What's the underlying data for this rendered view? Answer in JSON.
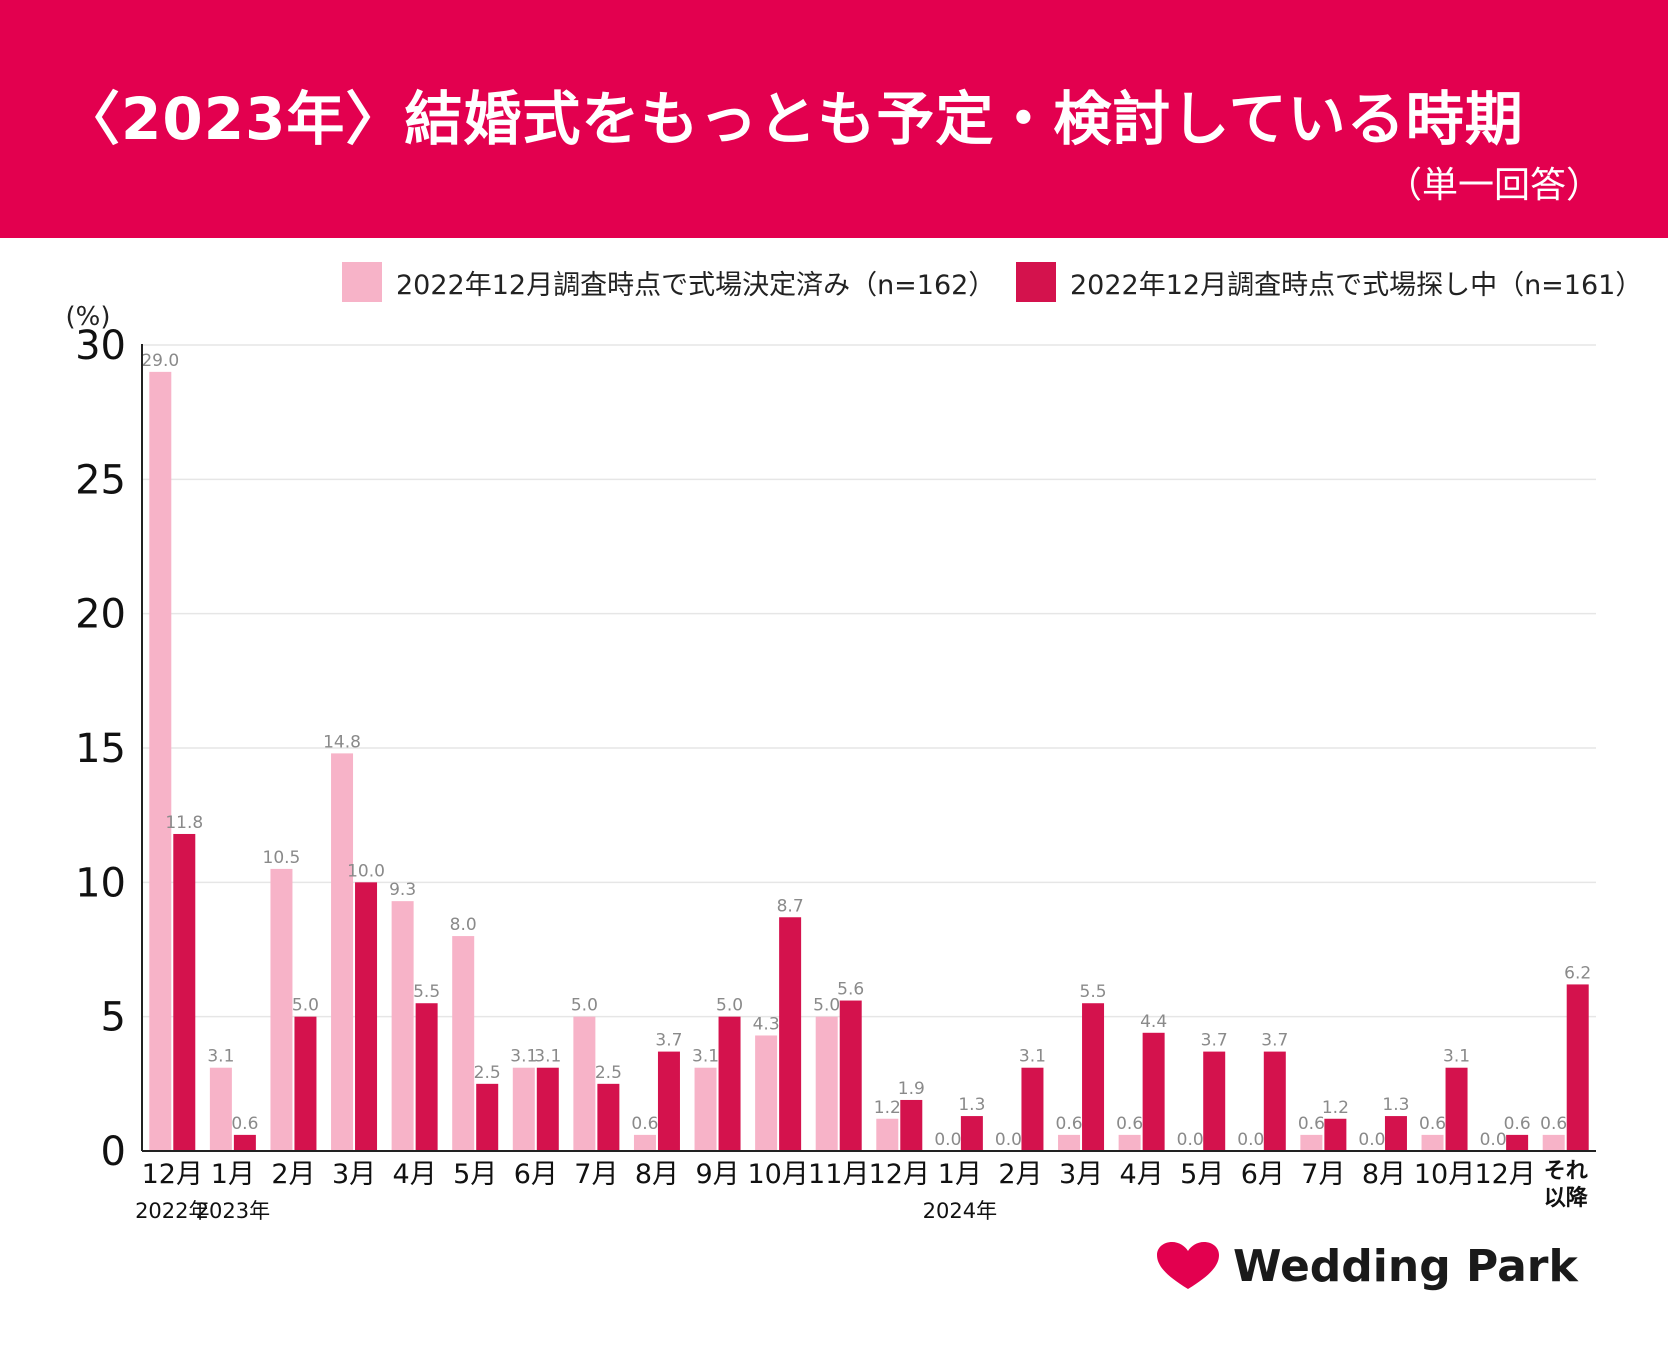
{
  "header": {
    "title": "〈2023年〉結婚式をもっとも予定・検討している時期",
    "note": "（単一回答）"
  },
  "colors": {
    "header_bg": "#e3004f",
    "series_decided": "#f7b3c8",
    "series_searching": "#d4124d"
  },
  "logo": {
    "text": "Wedding Park",
    "icon": "heart-icon"
  },
  "chart_data": {
    "type": "bar",
    "ylabel": "(%)",
    "ylim": [
      0,
      30
    ],
    "yticks": [
      0,
      5,
      10,
      15,
      20,
      25,
      30
    ],
    "grid": true,
    "legend_position": "top-right",
    "categories": [
      "12月",
      "1月",
      "2月",
      "3月",
      "4月",
      "5月",
      "6月",
      "7月",
      "8月",
      "9月",
      "10月",
      "11月",
      "12月",
      "1月",
      "2月",
      "3月",
      "4月",
      "5月",
      "6月",
      "7月",
      "8月",
      "10月",
      "12月",
      "それ以降"
    ],
    "year_labels": [
      {
        "text": "2022年",
        "category_index": 0
      },
      {
        "text": "2023年",
        "category_index": 1
      },
      {
        "text": "2024年",
        "category_index": 13
      }
    ],
    "series": [
      {
        "name": "2022年12月調査時点で式場決定済み（n=162）",
        "values": [
          29.0,
          3.1,
          10.5,
          14.8,
          9.3,
          8.0,
          3.1,
          5.0,
          0.6,
          3.1,
          4.3,
          5.0,
          1.2,
          0.0,
          0.0,
          0.6,
          0.6,
          0.0,
          0.0,
          0.6,
          0.0,
          0.6,
          0.0,
          0.6
        ]
      },
      {
        "name": "2022年12月調査時点で式場探し中（n=161）",
        "values": [
          11.8,
          0.6,
          5.0,
          10.0,
          5.5,
          2.5,
          3.1,
          2.5,
          3.7,
          5.0,
          8.7,
          5.6,
          1.9,
          1.3,
          3.1,
          5.5,
          4.4,
          3.7,
          3.7,
          1.2,
          1.3,
          3.1,
          0.6,
          6.2
        ]
      }
    ]
  }
}
